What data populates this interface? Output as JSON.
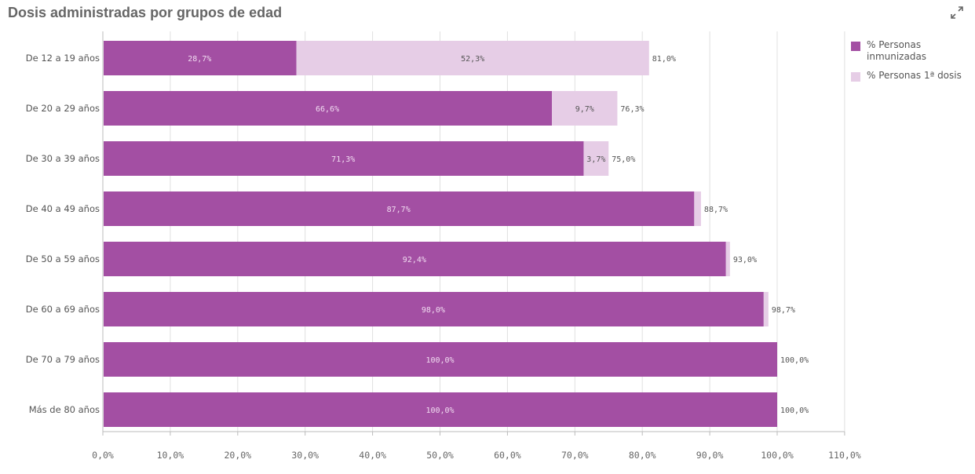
{
  "header": {
    "title": "Dosis administradas por grupos de edad"
  },
  "icons": {
    "expand": "expand-icon"
  },
  "colors": {
    "immunized": "#a34fa3",
    "first_dose": "#e6cde6",
    "immunized_label": "#f1dcf1",
    "first_dose_label": "#555555"
  },
  "chart_data": {
    "type": "bar",
    "orientation": "horizontal",
    "stacked": true,
    "title": "Dosis administradas por grupos de edad",
    "categories": [
      "De 12 a 19 años",
      "De 20 a 29 años",
      "De 30 a 39 años",
      "De 40 a 49 años",
      "De 50 a 59 años",
      "De 60 a 69 años",
      "De 70 a 79 años",
      "Más de 80 años"
    ],
    "series": [
      {
        "name": "% Personas inmunizadas",
        "values": [
          28.7,
          66.6,
          71.3,
          87.7,
          92.4,
          98.0,
          100.0,
          100.0
        ],
        "labels": [
          "28,7%",
          "66,6%",
          "71,3%",
          "87,7%",
          "92,4%",
          "98,0%",
          "100,0%",
          "100,0%"
        ]
      },
      {
        "name": "% Personas 1ª dosis",
        "values": [
          52.3,
          9.7,
          3.7,
          1.0,
          0.6,
          0.7,
          0.0,
          0.0
        ],
        "labels": [
          "52,3%",
          "9,7%",
          "3,7%",
          "",
          "",
          "",
          "",
          ""
        ]
      }
    ],
    "totals": [
      81.0,
      76.3,
      75.0,
      88.7,
      93.0,
      98.7,
      100.0,
      100.0
    ],
    "total_labels": [
      "81,0%",
      "76,3%",
      "75,0%",
      "88,7%",
      "93,0%",
      "98,7%",
      "100,0%",
      "100,0%"
    ],
    "xlim": [
      0,
      110
    ],
    "xticks": [
      0,
      10,
      20,
      30,
      40,
      50,
      60,
      70,
      80,
      90,
      100,
      110
    ],
    "xtick_labels": [
      "0,0%",
      "10,0%",
      "20,0%",
      "30,0%",
      "40,0%",
      "50,0%",
      "60,0%",
      "70,0%",
      "80,0%",
      "90,0%",
      "100,0%",
      "110,0%"
    ],
    "grid": true,
    "legend_position": "top-right"
  }
}
